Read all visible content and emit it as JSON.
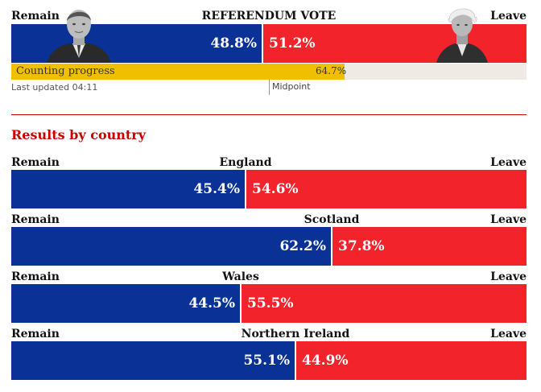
{
  "chart_data": [
    {
      "type": "bar",
      "title": "REFERENDUM VOTE",
      "series": [
        {
          "name": "Remain",
          "values": [
            48.8
          ]
        },
        {
          "name": "Leave",
          "values": [
            51.2
          ]
        }
      ],
      "value_labels": [
        "48.8%",
        "51.2%"
      ],
      "colors": {
        "remain": "#0a3196",
        "leave": "#f2232a"
      }
    },
    {
      "type": "bar",
      "title": "Results by country",
      "categories": [
        "England",
        "Scotland",
        "Wales",
        "Northern Ireland"
      ],
      "series": [
        {
          "name": "Remain",
          "values": [
            45.4,
            62.2,
            44.5,
            55.1
          ]
        },
        {
          "name": "Leave",
          "values": [
            54.6,
            37.8,
            55.5,
            44.9
          ]
        }
      ],
      "remain_labels": [
        "45.4%",
        "62.2%",
        "44.5%",
        "55.1%"
      ],
      "leave_labels": [
        "54.6%",
        "37.8%",
        "55.5%",
        "44.9%"
      ],
      "colors": {
        "remain": "#0a3196",
        "leave": "#f2232a"
      }
    }
  ],
  "header": {
    "title": "REFERENDUM VOTE",
    "remain_label": "Remain",
    "leave_label": "Leave",
    "remain_pct": "48.8%",
    "leave_pct": "51.2%",
    "remain_value": 48.8
  },
  "progress": {
    "label": "Counting progress",
    "value_text": "64.7%",
    "value": 64.7,
    "color": "#f0c000"
  },
  "updated": "Last updated 04:11",
  "midpoint": "Midpoint",
  "section_title": "Results by country",
  "countries": [
    {
      "name": "England",
      "remain_label": "Remain",
      "leave_label": "Leave",
      "remain": 45.4,
      "leave": 54.6,
      "remain_text": "45.4%",
      "leave_text": "54.6%"
    },
    {
      "name": "Scotland",
      "remain_label": "Remain",
      "leave_label": "Leave",
      "remain": 62.2,
      "leave": 37.8,
      "remain_text": "62.2%",
      "leave_text": "37.8%"
    },
    {
      "name": "Wales",
      "remain_label": "Remain",
      "leave_label": "Leave",
      "remain": 44.5,
      "leave": 55.5,
      "remain_text": "44.5%",
      "leave_text": "55.5%"
    },
    {
      "name": "Northern Ireland",
      "remain_label": "Remain",
      "leave_label": "Leave",
      "remain": 55.1,
      "leave": 44.9,
      "remain_text": "55.1%",
      "leave_text": "44.9%"
    }
  ]
}
